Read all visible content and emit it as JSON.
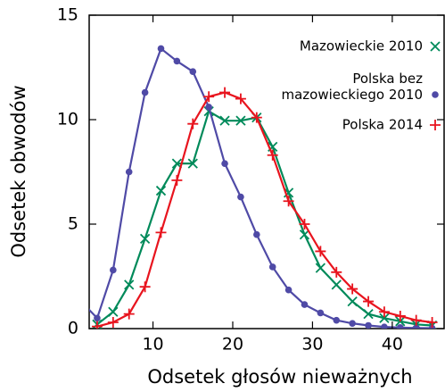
{
  "chart_data": {
    "type": "line",
    "x_label": "Odsetek głosów nieważnych",
    "y_label": "Odsetek obwodów",
    "xlim": [
      2,
      46.5
    ],
    "ylim": [
      0,
      15
    ],
    "xticks": [
      10,
      20,
      30,
      40
    ],
    "yticks": [
      0,
      5,
      10,
      15
    ],
    "legend": "top-right",
    "x": [
      1,
      3,
      5,
      7,
      9,
      11,
      13,
      15,
      17,
      19,
      21,
      23,
      25,
      27,
      29,
      31,
      33,
      35,
      37,
      39,
      41,
      43,
      45
    ],
    "series": [
      {
        "name": "Mazowieckie 2010",
        "color": "#008a5a",
        "marker": "x",
        "values": [
          null,
          0.2,
          0.8,
          2.1,
          4.3,
          6.6,
          7.9,
          7.9,
          10.4,
          9.95,
          9.95,
          10.1,
          8.7,
          6.5,
          4.5,
          2.9,
          2.1,
          1.3,
          0.7,
          0.5,
          0.35,
          0.2,
          0.15
        ]
      },
      {
        "name": "Polska bez\nmazowieckiego 2010",
        "color": "#4f4aa6",
        "marker": "circle",
        "values": [
          1.3,
          0.5,
          2.8,
          7.5,
          11.3,
          13.4,
          12.8,
          12.3,
          10.6,
          7.9,
          6.3,
          4.5,
          2.95,
          1.85,
          1.15,
          0.75,
          0.4,
          0.25,
          0.15,
          0.08,
          0.05,
          0.03,
          0.02
        ]
      },
      {
        "name": "Polska 2014",
        "color": "#e8141e",
        "marker": "plus",
        "values": [
          null,
          0.1,
          0.3,
          0.7,
          2.0,
          4.6,
          7.1,
          9.8,
          11.1,
          11.3,
          11.0,
          10.1,
          8.3,
          6.1,
          5.0,
          3.7,
          2.7,
          1.9,
          1.3,
          0.8,
          0.6,
          0.4,
          0.3
        ]
      }
    ]
  }
}
